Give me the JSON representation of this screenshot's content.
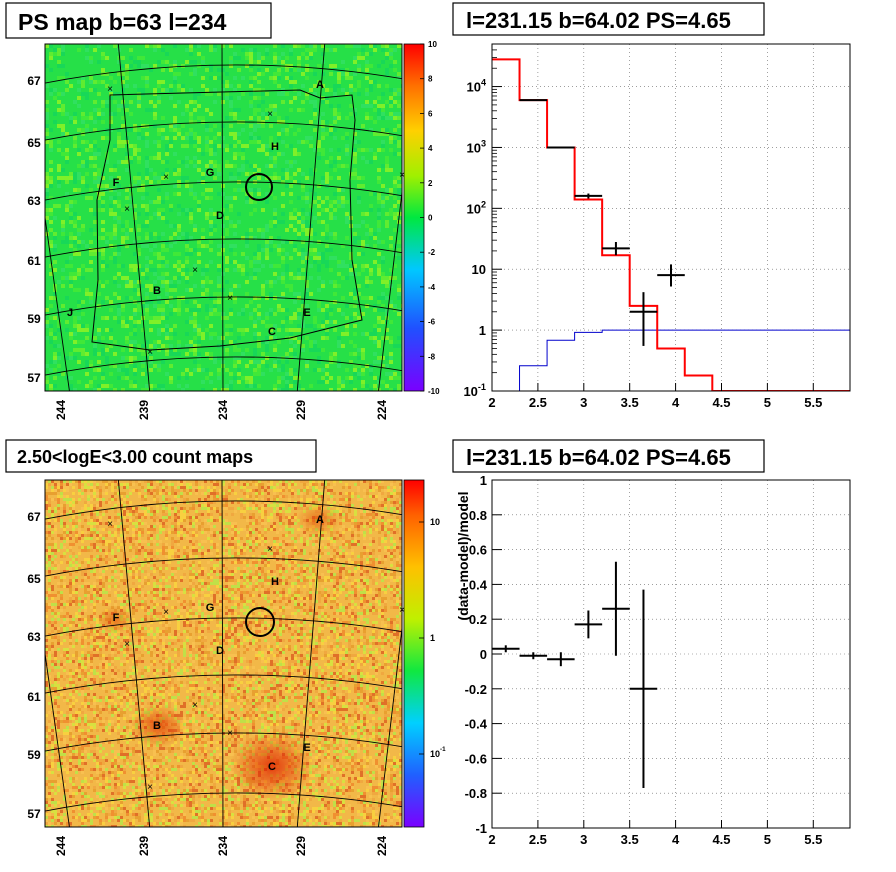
{
  "panels": {
    "tl": {
      "title": "PS map b=63 l=234"
    },
    "tr": {
      "title": "l=231.15 b=64.02 PS=4.65"
    },
    "bl": {
      "title": "2.50<logE<3.00 count maps"
    },
    "br": {
      "title": "l=231.15 b=64.02 PS=4.65"
    }
  },
  "chart_data": [
    {
      "type": "heatmap",
      "title": "PS map b=63 l=234",
      "x_tick_labels": [
        "244",
        "239",
        "234",
        "229",
        "224"
      ],
      "y_tick_labels": [
        "67",
        "65",
        "63",
        "61",
        "59",
        "57"
      ],
      "colorbar_labels": [
        "10",
        "8",
        "6",
        "4",
        "2",
        "0",
        "-2",
        "-4",
        "-6",
        "-8",
        "-10"
      ],
      "colorbar_range": [
        -10,
        10
      ],
      "source_labels": [
        "A",
        "H",
        "G",
        "F",
        "D",
        "B",
        "E",
        "C",
        "J"
      ],
      "colors": {
        "map_base": "#22e04a",
        "outline": "#000000"
      }
    },
    {
      "type": "line",
      "title": "l=231.15 b=64.02 PS=4.65",
      "xlim": [
        2,
        5.9
      ],
      "ylim": [
        0.1,
        50000
      ],
      "yscale": "log",
      "x_tick_labels": [
        "2",
        "2.5",
        "3",
        "3.5",
        "4",
        "4.5",
        "5",
        "5.5"
      ],
      "y_tick_labels": [
        "10^-1",
        "1",
        "10",
        "10^2",
        "10^3",
        "10^4"
      ],
      "grid": true,
      "series": [
        {
          "role": "model-step",
          "color": "#ff0000",
          "edges": [
            2.0,
            2.3,
            2.6,
            2.9,
            3.2,
            3.5,
            3.8,
            4.1,
            4.4,
            5.9
          ],
          "values": [
            28000,
            6000,
            1000,
            140,
            17,
            2.5,
            0.5,
            0.18,
            0.1
          ]
        },
        {
          "role": "background-step",
          "color": "#0000cc",
          "edges": [
            2.3,
            2.6,
            2.9,
            3.2,
            5.9
          ],
          "values": [
            0.26,
            0.68,
            0.92,
            1.0
          ]
        },
        {
          "role": "data-points",
          "color": "#000000",
          "points": [
            {
              "x": 2.45,
              "y": 6000,
              "xerr": 0.15,
              "ylo": 6000,
              "yhi": 6000
            },
            {
              "x": 2.75,
              "y": 1000,
              "xerr": 0.15,
              "ylo": 1000,
              "yhi": 1000
            },
            {
              "x": 3.05,
              "y": 160,
              "xerr": 0.15,
              "ylo": 145,
              "yhi": 175
            },
            {
              "x": 3.35,
              "y": 22,
              "xerr": 0.15,
              "ylo": 17,
              "yhi": 28
            },
            {
              "x": 3.65,
              "y": 2.0,
              "xerr": 0.15,
              "ylo": 0.55,
              "yhi": 4.2
            },
            {
              "x": 3.95,
              "y": 8,
              "xerr": 0.15,
              "ylo": 5.2,
              "yhi": 12
            }
          ]
        }
      ]
    },
    {
      "type": "heatmap",
      "title": "2.50<logE<3.00 count maps",
      "x_tick_labels": [
        "244",
        "239",
        "234",
        "229",
        "224"
      ],
      "y_tick_labels": [
        "67",
        "65",
        "63",
        "61",
        "59",
        "57"
      ],
      "colorbar_labels": [
        "10",
        "1",
        "10^-1"
      ],
      "colorbar_scale": "log",
      "source_labels": [
        "A",
        "H",
        "G",
        "F",
        "D",
        "B",
        "E",
        "C"
      ],
      "colors": {
        "map_base": "#f0b040",
        "outline": "#000000"
      }
    },
    {
      "type": "scatter",
      "title": "l=231.15 b=64.02 PS=4.65",
      "ylabel": "(data-model)/model",
      "xlim": [
        2,
        5.9
      ],
      "ylim": [
        -1,
        1
      ],
      "x_tick_labels": [
        "2",
        "2.5",
        "3",
        "3.5",
        "4",
        "4.5",
        "5",
        "5.5"
      ],
      "y_tick_labels": [
        "1",
        "0.8",
        "0.6",
        "0.4",
        "0.2",
        "0",
        "-0.2",
        "-0.4",
        "-0.6",
        "-0.8",
        "-1"
      ],
      "grid": true,
      "points": [
        {
          "x": 2.15,
          "y": 0.03,
          "xerr": 0.15,
          "ylo": 0.01,
          "yhi": 0.05
        },
        {
          "x": 2.45,
          "y": -0.01,
          "xerr": 0.15,
          "ylo": -0.03,
          "yhi": 0.01
        },
        {
          "x": 2.75,
          "y": -0.03,
          "xerr": 0.15,
          "ylo": -0.07,
          "yhi": 0.01
        },
        {
          "x": 3.05,
          "y": 0.17,
          "xerr": 0.15,
          "ylo": 0.09,
          "yhi": 0.25
        },
        {
          "x": 3.35,
          "y": 0.26,
          "xerr": 0.15,
          "ylo": -0.01,
          "yhi": 0.53
        },
        {
          "x": 3.65,
          "y": -0.2,
          "xerr": 0.15,
          "ylo": -0.77,
          "yhi": 0.37
        }
      ]
    }
  ]
}
